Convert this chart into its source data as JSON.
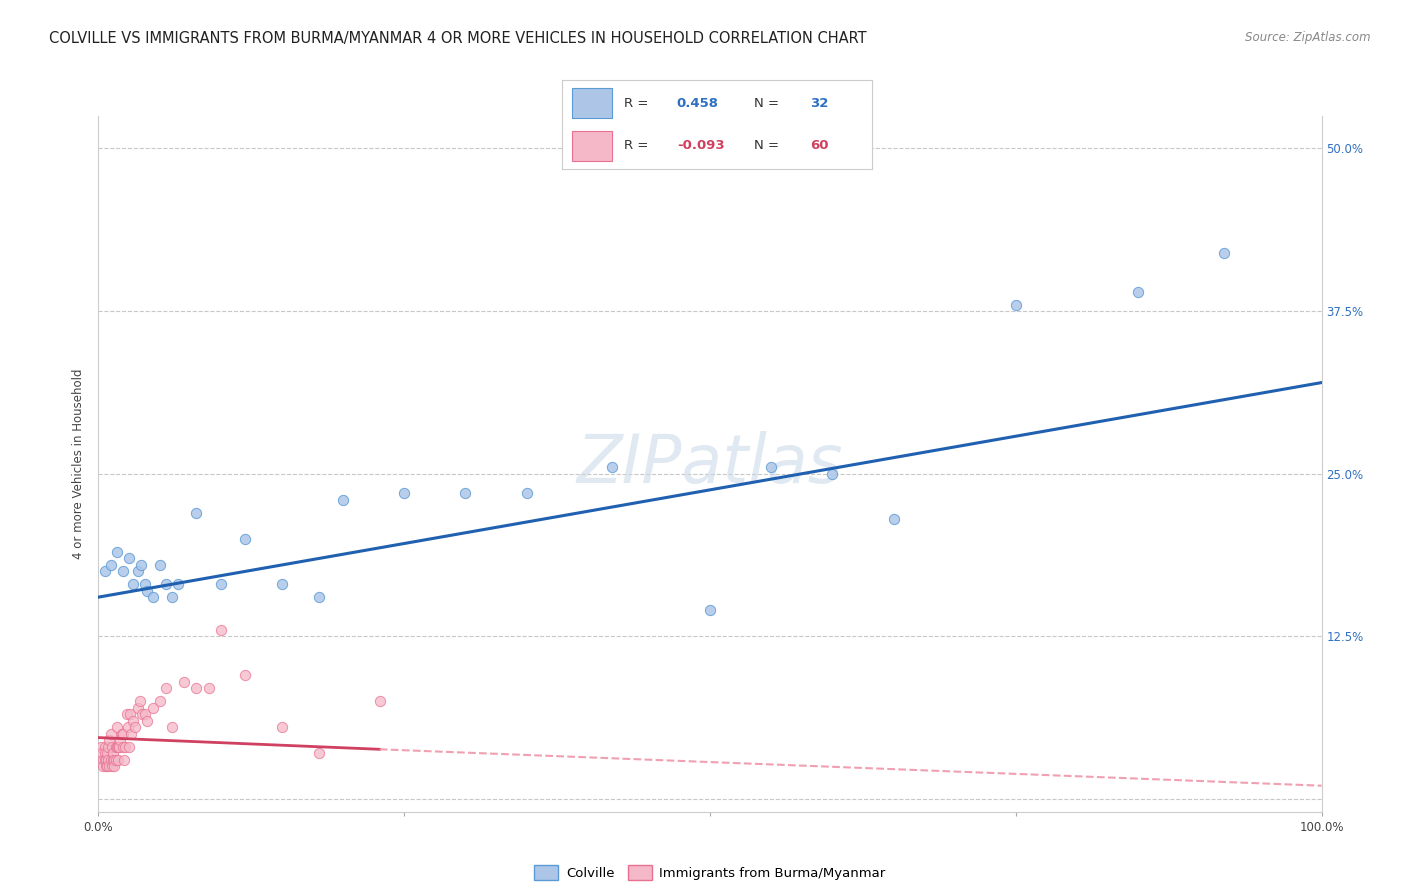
{
  "title": "COLVILLE VS IMMIGRANTS FROM BURMA/MYANMAR 4 OR MORE VEHICLES IN HOUSEHOLD CORRELATION CHART",
  "source": "Source: ZipAtlas.com",
  "ylabel": "4 or more Vehicles in Household",
  "xlim": [
    0.0,
    1.0
  ],
  "ylim": [
    -0.01,
    0.525
  ],
  "xticks": [
    0.0,
    0.25,
    0.5,
    0.75,
    1.0
  ],
  "xticklabels": [
    "0.0%",
    "",
    "",
    "",
    "100.0%"
  ],
  "yticks": [
    0.0,
    0.125,
    0.25,
    0.375,
    0.5
  ],
  "yticklabels": [
    "",
    "12.5%",
    "25.0%",
    "37.5%",
    "50.0%"
  ],
  "grid_color": "#c8c8c8",
  "background_color": "#ffffff",
  "blue_R": 0.458,
  "blue_N": 32,
  "pink_R": -0.093,
  "pink_N": 60,
  "blue_scatter_x": [
    0.005,
    0.01,
    0.015,
    0.02,
    0.025,
    0.028,
    0.032,
    0.035,
    0.038,
    0.04,
    0.045,
    0.05,
    0.055,
    0.06,
    0.065,
    0.08,
    0.1,
    0.12,
    0.15,
    0.18,
    0.2,
    0.25,
    0.3,
    0.35,
    0.42,
    0.5,
    0.55,
    0.6,
    0.65,
    0.75,
    0.85,
    0.92
  ],
  "blue_scatter_y": [
    0.175,
    0.18,
    0.19,
    0.175,
    0.185,
    0.165,
    0.175,
    0.18,
    0.165,
    0.16,
    0.155,
    0.18,
    0.165,
    0.155,
    0.165,
    0.22,
    0.165,
    0.2,
    0.165,
    0.155,
    0.23,
    0.235,
    0.235,
    0.235,
    0.255,
    0.145,
    0.255,
    0.25,
    0.215,
    0.38,
    0.39,
    0.42
  ],
  "pink_scatter_x": [
    0.002,
    0.003,
    0.004,
    0.004,
    0.005,
    0.005,
    0.005,
    0.006,
    0.006,
    0.007,
    0.007,
    0.008,
    0.008,
    0.009,
    0.009,
    0.01,
    0.01,
    0.011,
    0.011,
    0.012,
    0.012,
    0.013,
    0.013,
    0.014,
    0.014,
    0.015,
    0.015,
    0.016,
    0.016,
    0.017,
    0.018,
    0.019,
    0.02,
    0.02,
    0.021,
    0.022,
    0.023,
    0.024,
    0.025,
    0.026,
    0.027,
    0.028,
    0.03,
    0.032,
    0.034,
    0.036,
    0.038,
    0.04,
    0.045,
    0.05,
    0.055,
    0.06,
    0.07,
    0.08,
    0.09,
    0.1,
    0.12,
    0.15,
    0.18,
    0.23
  ],
  "pink_scatter_y": [
    0.04,
    0.035,
    0.03,
    0.025,
    0.04,
    0.035,
    0.03,
    0.03,
    0.025,
    0.035,
    0.025,
    0.04,
    0.03,
    0.045,
    0.025,
    0.05,
    0.03,
    0.04,
    0.025,
    0.03,
    0.035,
    0.03,
    0.025,
    0.04,
    0.03,
    0.04,
    0.055,
    0.03,
    0.04,
    0.04,
    0.045,
    0.05,
    0.05,
    0.04,
    0.03,
    0.04,
    0.065,
    0.055,
    0.04,
    0.065,
    0.05,
    0.06,
    0.055,
    0.07,
    0.075,
    0.065,
    0.065,
    0.06,
    0.07,
    0.075,
    0.085,
    0.055,
    0.09,
    0.085,
    0.085,
    0.13,
    0.095,
    0.055,
    0.035,
    0.075
  ],
  "blue_color": "#adc6e8",
  "blue_edge_color": "#5b9bd5",
  "pink_color": "#f4b8c8",
  "pink_edge_color": "#e87090",
  "blue_line_color": "#2060b0",
  "pink_line_color": "#d04060",
  "pink_dash_color": "#f0a0b0",
  "marker_size": 55,
  "title_fontsize": 10.5,
  "axis_fontsize": 8.5,
  "tick_fontsize": 8.5,
  "legend_fontsize": 9.5,
  "source_fontsize": 8.5
}
